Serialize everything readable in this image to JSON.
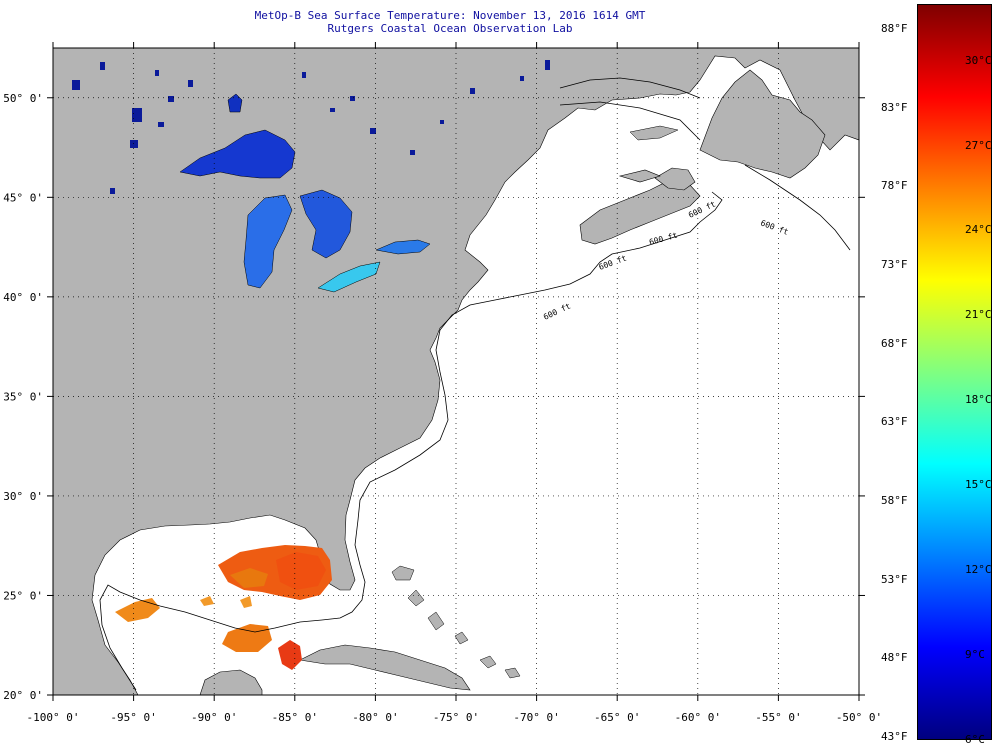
{
  "header": {
    "title": "MetOp-B Sea Surface Temperature:  November 13, 2016 1614 GMT",
    "subtitle": "Rutgers Coastal Ocean Observation Lab"
  },
  "map": {
    "lon_range": [
      -100,
      -50
    ],
    "lat_range": [
      20,
      52.5
    ],
    "lon_ticks": [
      "-100° 0'",
      "-95° 0'",
      "-90° 0'",
      "-85° 0'",
      "-80° 0'",
      "-75° 0'",
      "-70° 0'",
      "-65° 0'",
      "-60° 0'",
      "-55° 0'",
      "-50° 0'"
    ],
    "lat_ticks": [
      "20° 0'",
      "25° 0'",
      "30° 0'",
      "35° 0'",
      "40° 0'",
      "45° 0'",
      "50° 0'"
    ],
    "contour_labels": [
      "600 ft",
      "600 ft",
      "600 ft",
      "600 ft",
      "600 ft"
    ],
    "colors": {
      "land": "#b4b4b4",
      "ocean_no_data": "#ffffff",
      "grid": "#000000",
      "title_text": "#1010a0"
    }
  },
  "colorbar": {
    "celsius_labels": [
      "30°C",
      "27°C",
      "24°C",
      "21°C",
      "18°C",
      "15°C",
      "12°C",
      "9°C",
      "6°C"
    ],
    "fahrenheit_labels": [
      "88°F",
      "83°F",
      "78°F",
      "73°F",
      "68°F",
      "63°F",
      "58°F",
      "53°F",
      "48°F",
      "43°F"
    ],
    "range_celsius": [
      6,
      32
    ],
    "stops": [
      "#00007f",
      "#0000ff",
      "#0080ff",
      "#00ffff",
      "#80ff80",
      "#ffff00",
      "#ff8000",
      "#ff0000",
      "#7f0000"
    ]
  }
}
